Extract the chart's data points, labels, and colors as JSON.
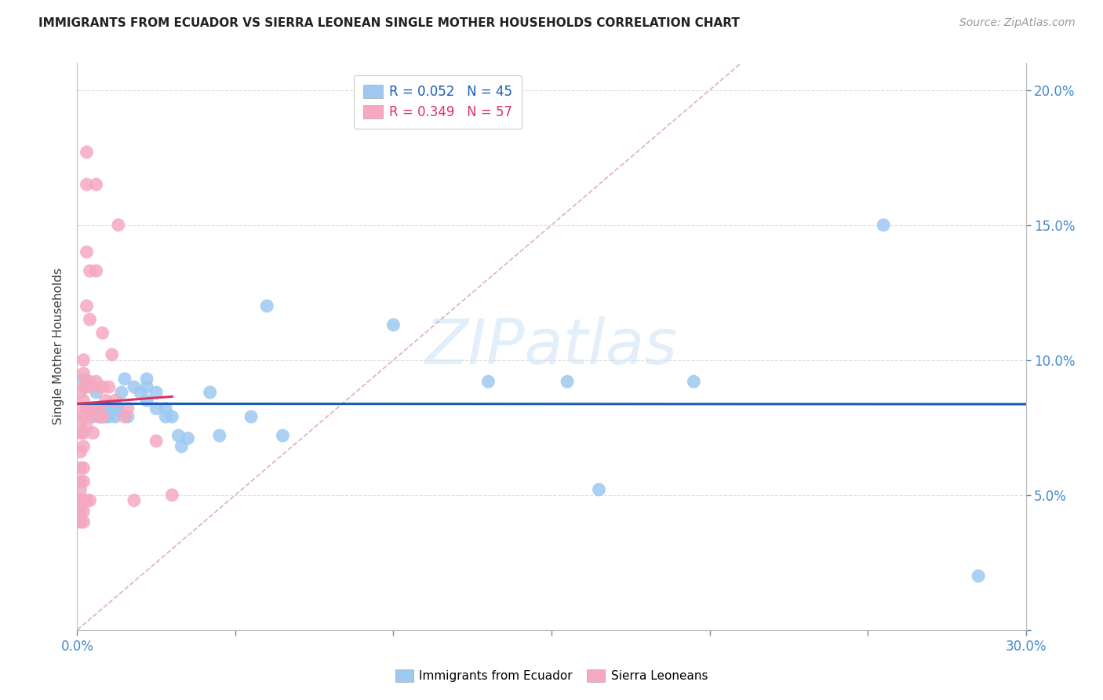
{
  "title": "IMMIGRANTS FROM ECUADOR VS SIERRA LEONEAN SINGLE MOTHER HOUSEHOLDS CORRELATION CHART",
  "source": "Source: ZipAtlas.com",
  "xlabel_blue": "Immigrants from Ecuador",
  "xlabel_pink": "Sierra Leoneans",
  "ylabel": "Single Mother Households",
  "xlim": [
    0.0,
    0.3
  ],
  "ylim": [
    0.0,
    0.21
  ],
  "xtick_positions": [
    0.0,
    0.05,
    0.1,
    0.15,
    0.2,
    0.25,
    0.3
  ],
  "xtick_labels": [
    "0.0%",
    "",
    "",
    "",
    "",
    "",
    "30.0%"
  ],
  "ytick_positions": [
    0.0,
    0.05,
    0.1,
    0.15,
    0.2
  ],
  "ytick_labels_right": [
    "",
    "5.0%",
    "10.0%",
    "15.0%",
    "20.0%"
  ],
  "legend_blue_R": "0.052",
  "legend_blue_N": "45",
  "legend_pink_R": "0.349",
  "legend_pink_N": "57",
  "blue_color": "#9dc8f0",
  "pink_color": "#f5a8c0",
  "blue_line_color": "#1a5cb5",
  "pink_line_color": "#e03060",
  "diagonal_color": "#e0b0c0",
  "watermark": "ZIPatlas",
  "background_color": "#ffffff",
  "blue_points": [
    [
      0.002,
      0.093
    ],
    [
      0.003,
      0.09
    ],
    [
      0.004,
      0.082
    ],
    [
      0.005,
      0.082
    ],
    [
      0.005,
      0.079
    ],
    [
      0.006,
      0.088
    ],
    [
      0.006,
      0.082
    ],
    [
      0.007,
      0.082
    ],
    [
      0.007,
      0.079
    ],
    [
      0.008,
      0.079
    ],
    [
      0.009,
      0.079
    ],
    [
      0.01,
      0.079
    ],
    [
      0.01,
      0.082
    ],
    [
      0.011,
      0.082
    ],
    [
      0.012,
      0.082
    ],
    [
      0.012,
      0.079
    ],
    [
      0.013,
      0.082
    ],
    [
      0.014,
      0.088
    ],
    [
      0.015,
      0.093
    ],
    [
      0.016,
      0.079
    ],
    [
      0.018,
      0.09
    ],
    [
      0.02,
      0.088
    ],
    [
      0.022,
      0.093
    ],
    [
      0.022,
      0.09
    ],
    [
      0.022,
      0.085
    ],
    [
      0.025,
      0.088
    ],
    [
      0.025,
      0.082
    ],
    [
      0.028,
      0.082
    ],
    [
      0.028,
      0.079
    ],
    [
      0.03,
      0.079
    ],
    [
      0.032,
      0.072
    ],
    [
      0.033,
      0.068
    ],
    [
      0.035,
      0.071
    ],
    [
      0.042,
      0.088
    ],
    [
      0.045,
      0.072
    ],
    [
      0.055,
      0.079
    ],
    [
      0.06,
      0.12
    ],
    [
      0.065,
      0.072
    ],
    [
      0.1,
      0.113
    ],
    [
      0.13,
      0.092
    ],
    [
      0.155,
      0.092
    ],
    [
      0.165,
      0.052
    ],
    [
      0.195,
      0.092
    ],
    [
      0.255,
      0.15
    ],
    [
      0.285,
      0.02
    ]
  ],
  "pink_points": [
    [
      0.001,
      0.088
    ],
    [
      0.001,
      0.082
    ],
    [
      0.001,
      0.077
    ],
    [
      0.001,
      0.073
    ],
    [
      0.001,
      0.066
    ],
    [
      0.001,
      0.06
    ],
    [
      0.001,
      0.055
    ],
    [
      0.001,
      0.052
    ],
    [
      0.001,
      0.048
    ],
    [
      0.001,
      0.044
    ],
    [
      0.001,
      0.04
    ],
    [
      0.002,
      0.1
    ],
    [
      0.002,
      0.095
    ],
    [
      0.002,
      0.09
    ],
    [
      0.002,
      0.085
    ],
    [
      0.002,
      0.079
    ],
    [
      0.002,
      0.073
    ],
    [
      0.002,
      0.068
    ],
    [
      0.002,
      0.06
    ],
    [
      0.002,
      0.055
    ],
    [
      0.002,
      0.048
    ],
    [
      0.002,
      0.044
    ],
    [
      0.002,
      0.04
    ],
    [
      0.003,
      0.177
    ],
    [
      0.003,
      0.165
    ],
    [
      0.003,
      0.14
    ],
    [
      0.003,
      0.12
    ],
    [
      0.003,
      0.092
    ],
    [
      0.003,
      0.082
    ],
    [
      0.003,
      0.075
    ],
    [
      0.003,
      0.048
    ],
    [
      0.004,
      0.133
    ],
    [
      0.004,
      0.115
    ],
    [
      0.004,
      0.092
    ],
    [
      0.004,
      0.079
    ],
    [
      0.004,
      0.048
    ],
    [
      0.005,
      0.09
    ],
    [
      0.005,
      0.082
    ],
    [
      0.005,
      0.073
    ],
    [
      0.006,
      0.165
    ],
    [
      0.006,
      0.133
    ],
    [
      0.006,
      0.092
    ],
    [
      0.007,
      0.082
    ],
    [
      0.007,
      0.079
    ],
    [
      0.008,
      0.11
    ],
    [
      0.008,
      0.09
    ],
    [
      0.008,
      0.079
    ],
    [
      0.009,
      0.085
    ],
    [
      0.01,
      0.09
    ],
    [
      0.011,
      0.102
    ],
    [
      0.012,
      0.085
    ],
    [
      0.013,
      0.15
    ],
    [
      0.015,
      0.079
    ],
    [
      0.016,
      0.082
    ],
    [
      0.018,
      0.048
    ],
    [
      0.025,
      0.07
    ],
    [
      0.03,
      0.05
    ]
  ]
}
